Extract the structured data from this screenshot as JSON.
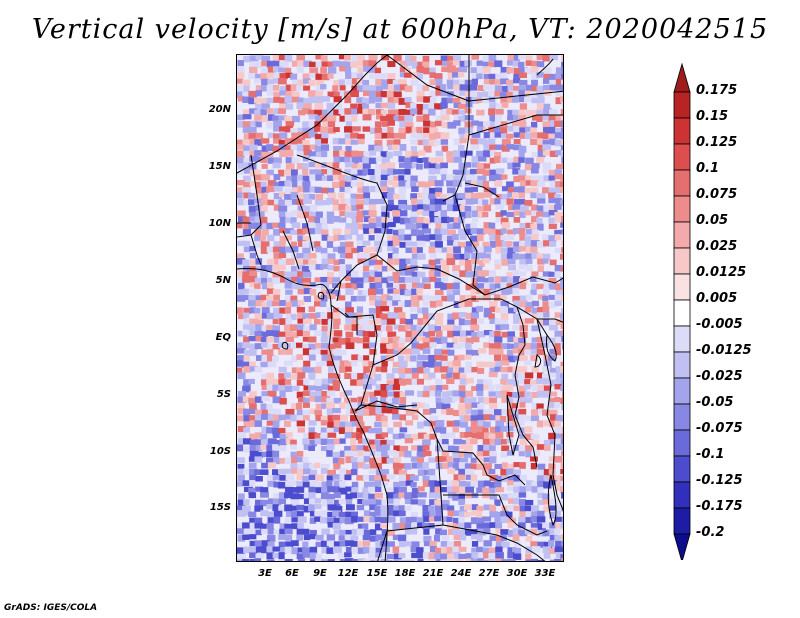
{
  "title": "Vertical velocity [m/s] at 600hPa, VT: 2020042515",
  "footer": "GrADS: IGES/COLA",
  "map": {
    "lat_labels": [
      "20N",
      "15N",
      "10N",
      "5N",
      "EQ",
      "5S",
      "10S",
      "15S"
    ],
    "lon_labels": [
      "3E",
      "6E",
      "9E",
      "12E",
      "15E",
      "18E",
      "21E",
      "24E",
      "27E",
      "30E",
      "33E"
    ]
  },
  "colorbar": {
    "levels": [
      "0.175",
      "0.15",
      "0.125",
      "0.1",
      "0.075",
      "0.05",
      "0.025",
      "0.0125",
      "0.005",
      "-0.005",
      "-0.0125",
      "-0.025",
      "-0.05",
      "-0.075",
      "-0.1",
      "-0.125",
      "-0.175",
      "-0.2"
    ],
    "colors": [
      "#a01c1c",
      "#b82424",
      "#cc3333",
      "#dd4f4f",
      "#e56e6e",
      "#ec8c8c",
      "#f2aaaa",
      "#f7c8c8",
      "#fbe2e2",
      "#ffffff",
      "#dcdcf8",
      "#c0c0f2",
      "#a4a4ec",
      "#8888e4",
      "#6a6ada",
      "#4c4cce",
      "#3030bc",
      "#1c1ca4",
      "#0c0c8c"
    ]
  }
}
